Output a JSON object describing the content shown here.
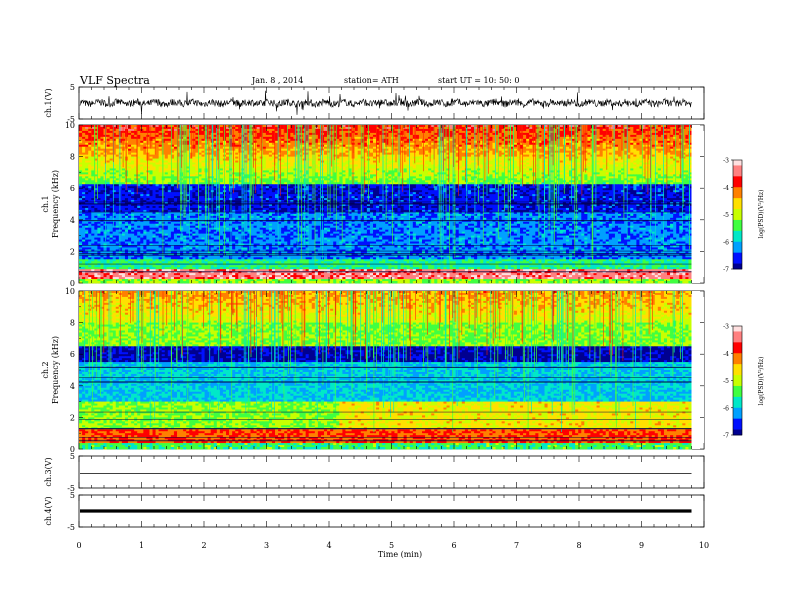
{
  "header": {
    "title": "VLF  Spectra",
    "date": "Jan.  8  ,  2014",
    "station": "station= ATH",
    "start": "start  UT  =    10: 50: 0"
  },
  "x_axis": {
    "label": "Time  (min)",
    "range": [
      0,
      10
    ],
    "ticks": [
      "0",
      "1",
      "2",
      "3",
      "4",
      "5",
      "6",
      "7",
      "8",
      "9",
      "10"
    ]
  },
  "colorbar": {
    "label": "log(PSD)(V²/Hz)",
    "range": [
      -7,
      -3
    ],
    "ticks": [
      "-3",
      "-4",
      "-5",
      "-6",
      "-7"
    ],
    "colors": [
      "#000090",
      "#0010ff",
      "#00a0ff",
      "#00e8c8",
      "#40ff40",
      "#c8ff00",
      "#ffe000",
      "#ff8000",
      "#ff0000",
      "#ff8080",
      "#ffe0e0"
    ]
  },
  "chart_data": [
    {
      "type": "line",
      "name": "ch.1 waveform",
      "ylabel": "ch.1(V)",
      "ylim": [
        -5,
        5
      ],
      "yticks": [
        "5",
        "-5"
      ],
      "xlim": [
        0,
        9.8
      ],
      "data_end_min": 9.8
    },
    {
      "type": "heatmap",
      "name": "ch.1 spectrogram",
      "ylabel": "ch.1\nFrequency (kHz)",
      "ylabel_line1": "ch.1",
      "ylabel_line2": "Frequency  (kHz)",
      "ylim": [
        0,
        10
      ],
      "yticks": [
        "10",
        "8",
        "6",
        "4",
        "2",
        "0"
      ],
      "xlim": [
        0,
        9.8
      ],
      "value_range": [
        -7,
        -3
      ]
    },
    {
      "type": "heatmap",
      "name": "ch.2 spectrogram",
      "ylabel_line1": "ch.2",
      "ylabel_line2": "Frequency  (kHz)",
      "ylim": [
        0,
        10
      ],
      "yticks": [
        "10",
        "8",
        "6",
        "4",
        "2",
        "0"
      ],
      "xlim": [
        0,
        9.8
      ],
      "value_range": [
        -7,
        -3
      ]
    },
    {
      "type": "line",
      "name": "ch.3 waveform",
      "ylabel": "ch.3(V)",
      "ylim": [
        -5,
        5
      ],
      "yticks": [
        "5",
        "-5"
      ],
      "level_v": -0.5
    },
    {
      "type": "line",
      "name": "ch.4 waveform",
      "ylabel": "ch.4(V)",
      "ylim": [
        -5,
        5
      ],
      "yticks": [
        "5",
        "-5"
      ],
      "level_v": 0
    }
  ]
}
